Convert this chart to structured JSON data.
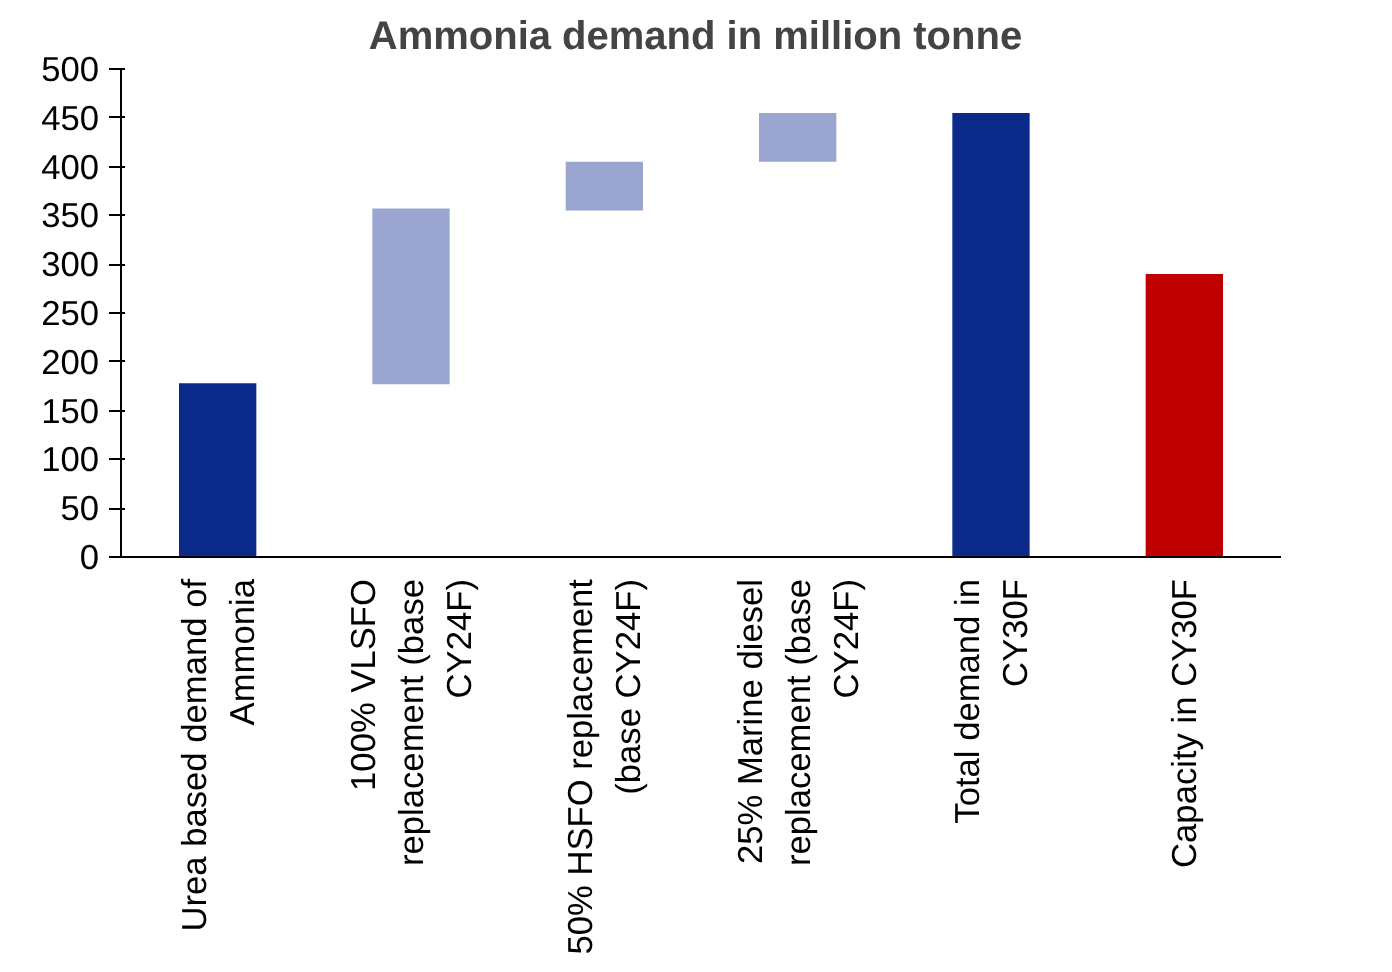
{
  "chart_data": {
    "type": "bar",
    "title": "Ammonia  demand in million tonne",
    "categories": [
      "Urea based demand of Ammonia",
      "100% VLSFO replacement (base CY24F)",
      "50% HSFO replacement (base CY24F)",
      "25% Marine diesel replacement (base CY24F)",
      "Total demand in CY30F",
      "Capacity in CY30F"
    ],
    "values": [
      178,
      180,
      50,
      50,
      455,
      290
    ],
    "base": [
      0,
      177,
      355,
      405,
      0,
      0
    ],
    "colors": [
      "#0b2a8a",
      "#9aa6cf",
      "#9aa6cf",
      "#9aa6cf",
      "#0b2a8a",
      "#c00000"
    ],
    "ylim": [
      0,
      500
    ],
    "yticks": [
      0,
      50,
      100,
      150,
      200,
      250,
      300,
      350,
      400,
      450,
      500
    ],
    "grid": false
  }
}
